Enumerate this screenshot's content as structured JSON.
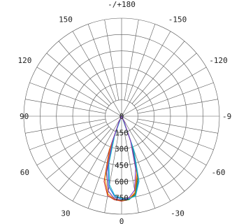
{
  "chart_data": {
    "type": "polar",
    "angle_labels": [
      {
        "angle": 180,
        "text": "-/+180"
      },
      {
        "angle": -150,
        "text": "-150"
      },
      {
        "angle": 150,
        "text": "150"
      },
      {
        "angle": -120,
        "text": "-120"
      },
      {
        "angle": 120,
        "text": "120"
      },
      {
        "angle": -90,
        "text": "-90"
      },
      {
        "angle": 90,
        "text": "90"
      },
      {
        "angle": -60,
        "text": "-60"
      },
      {
        "angle": 60,
        "text": "60"
      },
      {
        "angle": -30,
        "text": "-30"
      },
      {
        "angle": 30,
        "text": "30"
      },
      {
        "angle": 0,
        "text": "0"
      }
    ],
    "radial_ticks": [
      {
        "value": 0,
        "text": "0"
      },
      {
        "value": 150,
        "text": "150"
      },
      {
        "value": 300,
        "text": "300"
      },
      {
        "value": 450,
        "text": "450"
      },
      {
        "value": 600,
        "text": "600"
      },
      {
        "value": 750,
        "text": "750"
      }
    ],
    "r_max": 900,
    "angle_step": 10,
    "grid": true,
    "series": [
      {
        "color": "#cc2222",
        "points": [
          [
            -30,
            10
          ],
          [
            -20,
            260
          ],
          [
            -15,
            560
          ],
          [
            -10,
            720
          ],
          [
            -5,
            770
          ],
          [
            0,
            780
          ],
          [
            5,
            770
          ],
          [
            10,
            740
          ],
          [
            15,
            620
          ],
          [
            20,
            330
          ],
          [
            30,
            15
          ]
        ]
      },
      {
        "color": "#ee8800",
        "points": [
          [
            -30,
            8
          ],
          [
            -20,
            250
          ],
          [
            -15,
            540
          ],
          [
            -10,
            710
          ],
          [
            -5,
            765
          ],
          [
            0,
            775
          ],
          [
            5,
            765
          ],
          [
            10,
            725
          ],
          [
            15,
            590
          ],
          [
            20,
            300
          ],
          [
            30,
            12
          ]
        ]
      },
      {
        "color": "#22aa22",
        "points": [
          [
            -30,
            10
          ],
          [
            -20,
            280
          ],
          [
            -15,
            580
          ],
          [
            -10,
            730
          ],
          [
            -5,
            770
          ],
          [
            0,
            770
          ],
          [
            5,
            760
          ],
          [
            10,
            700
          ],
          [
            15,
            540
          ],
          [
            20,
            250
          ],
          [
            30,
            10
          ]
        ]
      },
      {
        "color": "#1166dd",
        "points": [
          [
            -30,
            12
          ],
          [
            -20,
            300
          ],
          [
            -15,
            600
          ],
          [
            -10,
            740
          ],
          [
            -5,
            765
          ],
          [
            0,
            760
          ],
          [
            5,
            740
          ],
          [
            10,
            660
          ],
          [
            15,
            480
          ],
          [
            20,
            200
          ],
          [
            30,
            8
          ]
        ]
      },
      {
        "color": "#22bbcc",
        "points": [
          [
            -30,
            14
          ],
          [
            -20,
            330
          ],
          [
            -15,
            620
          ],
          [
            -10,
            745
          ],
          [
            -5,
            760
          ],
          [
            0,
            755
          ],
          [
            5,
            730
          ],
          [
            10,
            640
          ],
          [
            15,
            450
          ],
          [
            20,
            180
          ],
          [
            30,
            6
          ]
        ]
      },
      {
        "color": "#8833bb",
        "points": [
          [
            -25,
            60
          ],
          [
            -20,
            240
          ],
          [
            -15,
            500
          ],
          [
            -10,
            690
          ],
          [
            -5,
            755
          ],
          [
            0,
            770
          ],
          [
            5,
            760
          ],
          [
            10,
            700
          ],
          [
            15,
            530
          ],
          [
            20,
            260
          ],
          [
            25,
            60
          ]
        ]
      }
    ]
  }
}
